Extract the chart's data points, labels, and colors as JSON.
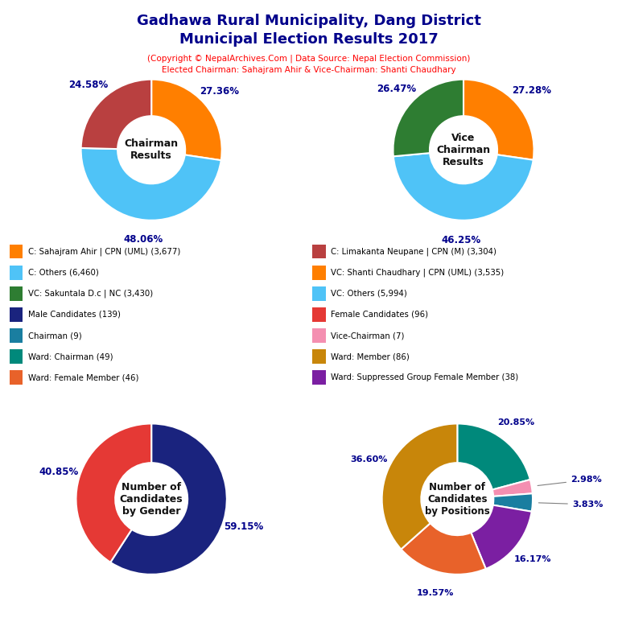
{
  "title_line1": "Gadhawa Rural Municipality, Dang District",
  "title_line2": "Municipal Election Results 2017",
  "subtitle_line1": "(Copyright © NepalArchives.Com | Data Source: Nepal Election Commission)",
  "subtitle_line2": "Elected Chairman: Sahajram Ahir & Vice-Chairman: Shanti Chaudhary",
  "chairman": {
    "label": "Chairman\nResults",
    "values": [
      27.36,
      48.06,
      24.58
    ],
    "colors": [
      "#FF7F00",
      "#4FC3F7",
      "#B94040"
    ],
    "pct_labels": [
      "27.36%",
      "48.06%",
      "24.58%"
    ]
  },
  "vice_chairman": {
    "label": "Vice\nChairman\nResults",
    "values": [
      27.28,
      46.25,
      26.47
    ],
    "colors": [
      "#FF7F00",
      "#4FC3F7",
      "#2E7D32"
    ],
    "pct_labels": [
      "27.28%",
      "46.25%",
      "26.47%"
    ]
  },
  "gender": {
    "label": "Number of\nCandidates\nby Gender",
    "values": [
      59.15,
      40.85
    ],
    "colors": [
      "#1A237E",
      "#E53935"
    ],
    "pct_labels": [
      "59.15%",
      "40.85%"
    ]
  },
  "positions": {
    "label": "Number of\nCandidates\nby Positions",
    "values": [
      20.85,
      2.98,
      3.83,
      16.17,
      19.57,
      36.6
    ],
    "colors": [
      "#00897B",
      "#F48FB1",
      "#1A7EA0",
      "#7B1FA2",
      "#E8622A",
      "#C8860A"
    ],
    "pct_labels": [
      "20.85%",
      "2.98%",
      "3.83%",
      "16.17%",
      "19.57%",
      "36.60%"
    ]
  },
  "legend_items": [
    {
      "label": "C: Sahajram Ahir | CPN (UML) (3,677)",
      "color": "#FF7F00"
    },
    {
      "label": "C: Others (6,460)",
      "color": "#4FC3F7"
    },
    {
      "label": "VC: Sakuntala D.c | NC (3,430)",
      "color": "#2E7D32"
    },
    {
      "label": "Male Candidates (139)",
      "color": "#1A237E"
    },
    {
      "label": "Chairman (9)",
      "color": "#1A7EA0"
    },
    {
      "label": "Ward: Chairman (49)",
      "color": "#00897B"
    },
    {
      "label": "Ward: Female Member (46)",
      "color": "#E8622A"
    },
    {
      "label": "C: Limakanta Neupane | CPN (M) (3,304)",
      "color": "#B94040"
    },
    {
      "label": "VC: Shanti Chaudhary | CPN (UML) (3,535)",
      "color": "#FF7F00"
    },
    {
      "label": "VC: Others (5,994)",
      "color": "#4FC3F7"
    },
    {
      "label": "Female Candidates (96)",
      "color": "#E53935"
    },
    {
      "label": "Vice-Chairman (7)",
      "color": "#F48FB1"
    },
    {
      "label": "Ward: Member (86)",
      "color": "#C8860A"
    },
    {
      "label": "Ward: Suppressed Group Female Member (38)",
      "color": "#7B1FA2"
    }
  ]
}
